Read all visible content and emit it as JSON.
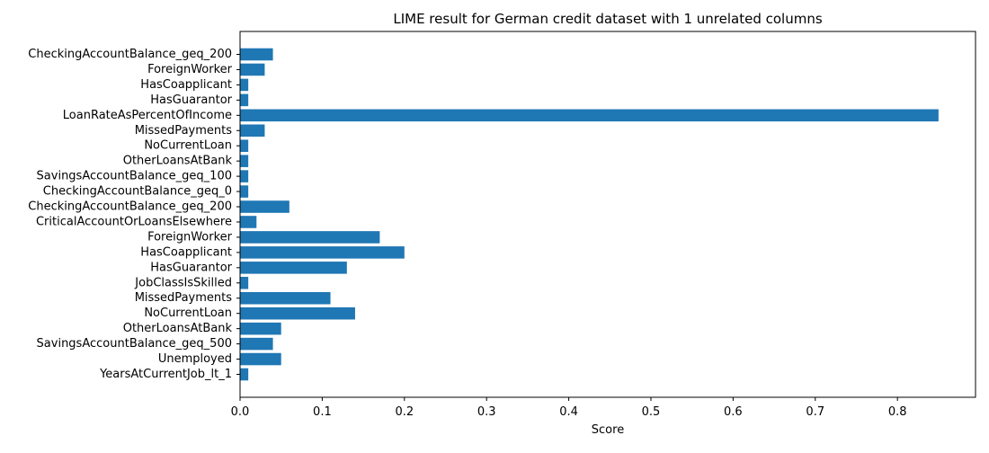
{
  "chart_data": {
    "type": "bar",
    "orientation": "horizontal",
    "title": "LIME result for German credit dataset with 1 unrelated columns",
    "xlabel": "Score",
    "ylabel": "",
    "xlim": [
      0,
      0.895
    ],
    "xticks": [
      0,
      0.1,
      0.2,
      0.3,
      0.4,
      0.5,
      0.6,
      0.7,
      0.8
    ],
    "xtick_labels": [
      "0.0",
      "0.1",
      "0.2",
      "0.3",
      "0.4",
      "0.5",
      "0.6",
      "0.7",
      "0.8"
    ],
    "grid": false,
    "legend": "none",
    "bar_color": "#1f77b4",
    "categories": [
      "CheckingAccountBalance_geq_200",
      "ForeignWorker",
      "HasCoapplicant",
      "HasGuarantor",
      "LoanRateAsPercentOfIncome",
      "MissedPayments",
      "NoCurrentLoan",
      "OtherLoansAtBank",
      "SavingsAccountBalance_geq_100",
      "CheckingAccountBalance_geq_0",
      "CheckingAccountBalance_geq_200",
      "CriticalAccountOrLoansElsewhere",
      "ForeignWorker",
      "HasCoapplicant",
      "HasGuarantor",
      "JobClassIsSkilled",
      "MissedPayments",
      "NoCurrentLoan",
      "OtherLoansAtBank",
      "SavingsAccountBalance_geq_500",
      "Unemployed",
      "YearsAtCurrentJob_lt_1"
    ],
    "values": [
      0.04,
      0.03,
      0.01,
      0.01,
      0.85,
      0.03,
      0.01,
      0.01,
      0.01,
      0.01,
      0.06,
      0.02,
      0.17,
      0.2,
      0.13,
      0.01,
      0.11,
      0.14,
      0.05,
      0.04,
      0.05,
      0.01
    ]
  }
}
